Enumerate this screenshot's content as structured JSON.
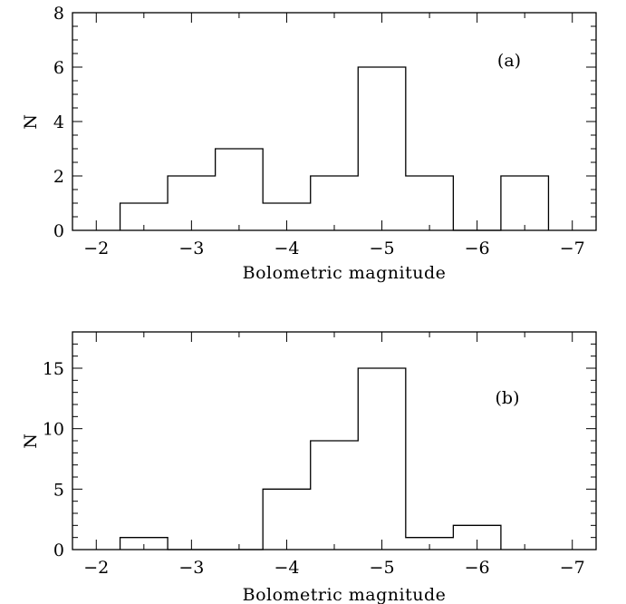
{
  "chart_data": [
    {
      "type": "bar",
      "panel_label": "(a)",
      "xlabel": "Bolometric magnitude",
      "ylabel": "N",
      "xlim": [
        -1.75,
        -7.25
      ],
      "ylim": [
        0,
        8
      ],
      "xticks_major": [
        -2,
        -3,
        -4,
        -5,
        -6,
        -7
      ],
      "xtick_labels": [
        "−2",
        "−3",
        "−4",
        "−5",
        "−6",
        "−7"
      ],
      "yticks_major": [
        0,
        2,
        4,
        6,
        8
      ],
      "ytick_labels": [
        "0",
        "2",
        "4",
        "6",
        "8"
      ],
      "yminor_step": 0.5,
      "bin_edges": [
        -2.25,
        -2.75,
        -3.25,
        -3.75,
        -4.25,
        -4.75,
        -5.25,
        -5.75,
        -6.25,
        -6.75
      ],
      "values": [
        1,
        2,
        3,
        1,
        2,
        6,
        2,
        0,
        2
      ]
    },
    {
      "type": "bar",
      "panel_label": "(b)",
      "xlabel": "Bolometric magnitude",
      "ylabel": "N",
      "xlim": [
        -1.75,
        -7.25
      ],
      "ylim": [
        0,
        18
      ],
      "xticks_major": [
        -2,
        -3,
        -4,
        -5,
        -6,
        -7
      ],
      "xtick_labels": [
        "−2",
        "−3",
        "−4",
        "−5",
        "−6",
        "−7"
      ],
      "yticks_major": [
        0,
        5,
        10,
        15
      ],
      "ytick_labels": [
        "0",
        "5",
        "10",
        "15"
      ],
      "yminor_step": 1,
      "bin_edges": [
        -2.25,
        -2.75,
        -3.25,
        -3.75,
        -4.25,
        -4.75,
        -5.25,
        -5.75,
        -6.25
      ],
      "values": [
        1,
        0,
        0,
        5,
        9,
        15,
        1,
        2
      ]
    }
  ]
}
